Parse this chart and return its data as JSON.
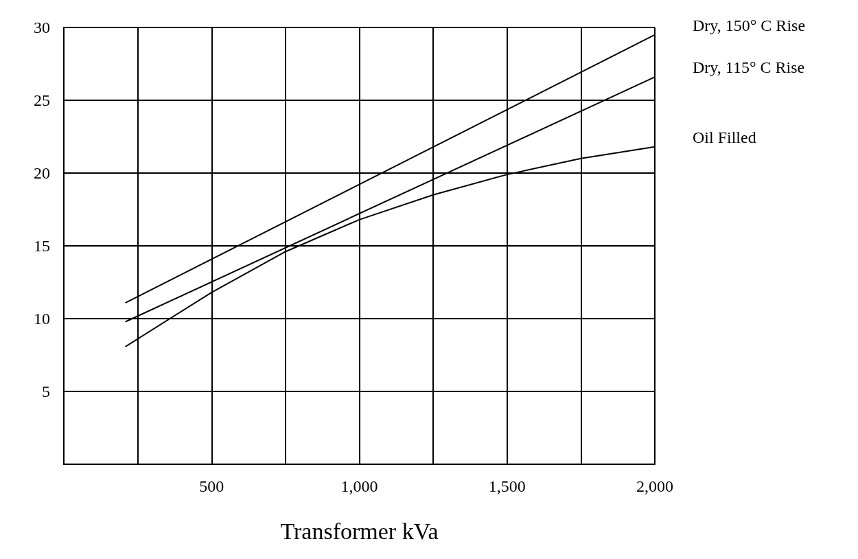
{
  "chart_data": {
    "type": "line",
    "xlabel": "Transformer kVa",
    "xlim": [
      0,
      2000
    ],
    "ylim": [
      0,
      30
    ],
    "xticks": [
      {
        "value": 0,
        "label": null
      },
      {
        "value": 250,
        "label": null
      },
      {
        "value": 500,
        "label": "500"
      },
      {
        "value": 750,
        "label": null
      },
      {
        "value": 1000,
        "label": "1,000"
      },
      {
        "value": 1250,
        "label": null
      },
      {
        "value": 1500,
        "label": "1,500"
      },
      {
        "value": 1750,
        "label": null
      },
      {
        "value": 2000,
        "label": "2,000"
      }
    ],
    "yticks": [
      {
        "value": 0,
        "label": null
      },
      5,
      10,
      15,
      20,
      25,
      30
    ],
    "grid": true,
    "legend": false,
    "marker": "none",
    "line_style": "solid",
    "series": [
      {
        "name": "Dry, 150° C Rise",
        "color": "#000000",
        "x": [
          210,
          2000
        ],
        "values": [
          11.1,
          29.5
        ]
      },
      {
        "name": "Dry, 115° C Rise",
        "color": "#000000",
        "x": [
          210,
          2000
        ],
        "values": [
          9.8,
          26.6
        ]
      },
      {
        "name": "Oil Filled",
        "color": "#000000",
        "x": [
          210,
          500,
          750,
          1000,
          1250,
          1500,
          1750,
          2000
        ],
        "values": [
          8.1,
          11.8,
          14.6,
          16.8,
          18.5,
          19.9,
          21.0,
          21.8
        ]
      }
    ]
  }
}
